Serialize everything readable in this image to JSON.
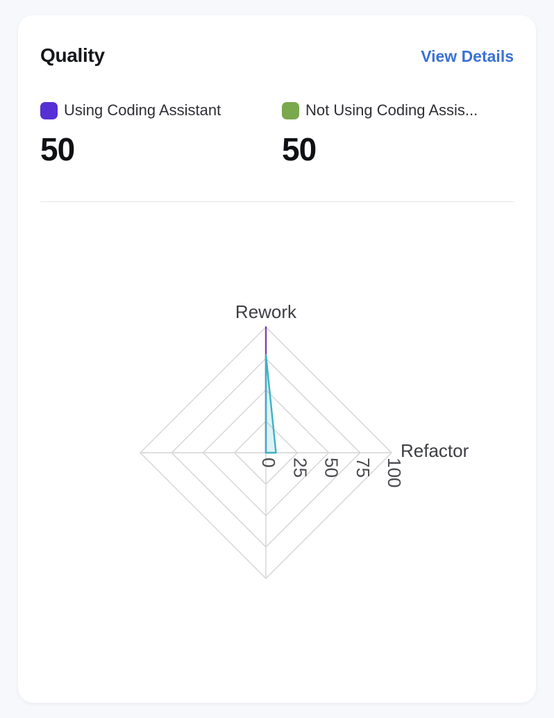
{
  "card": {
    "title": "Quality",
    "view_details_label": "View Details"
  },
  "legend": [
    {
      "label": "Using Coding Assistant",
      "value": "50",
      "color": "#5630d4"
    },
    {
      "label": "Not Using Coding Assis...",
      "value": "50",
      "color": "#7aa84c"
    }
  ],
  "chart_data": {
    "type": "radar",
    "title": "Quality",
    "indicators": [
      {
        "name": "Rework",
        "max": 100
      },
      {
        "name": "Refactor",
        "max": 100
      },
      {
        "name": "",
        "max": 100
      },
      {
        "name": "",
        "max": 100
      }
    ],
    "ticks": [
      0,
      25,
      50,
      75,
      100
    ],
    "axis_range": [
      0,
      100
    ],
    "grid": "diamond-rings",
    "legend_position": "top",
    "series": [
      {
        "name": "Using Coding Assistant",
        "values": [
          100,
          0,
          0,
          0
        ],
        "stroke": "#7c43b0",
        "fill": "none"
      },
      {
        "name": "Not Using Coding Assistant",
        "values": [
          78,
          8,
          0,
          0
        ],
        "stroke": "#3fb1c5",
        "fill": "rgba(63,177,197,0.16)"
      }
    ],
    "grid_color": "#d4d4d6",
    "tick_color": "#4a4b50",
    "label_color": "#3e3f44"
  }
}
